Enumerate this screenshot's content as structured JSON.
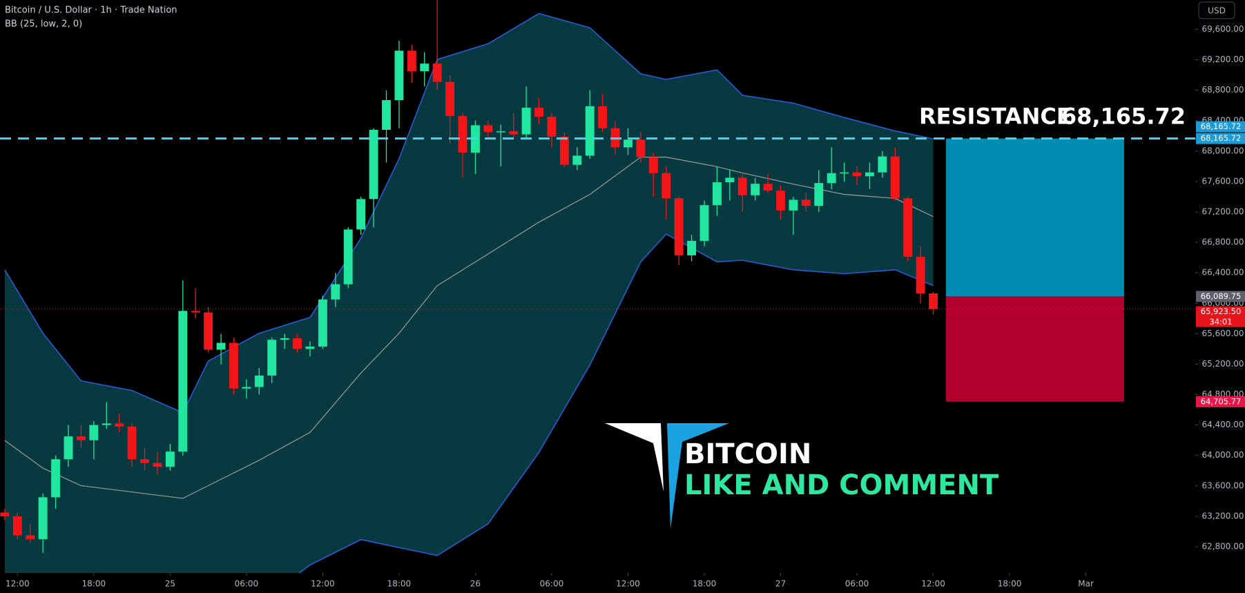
{
  "header": {
    "symbol": "Bitcoin / U.S. Dollar · 1h · Trade Nation",
    "indicator": "BB (25, low, 2, 0)",
    "currency": "USD"
  },
  "chart_data": {
    "type": "candlestick",
    "x": [
      0,
      1,
      2,
      3,
      4,
      5,
      6,
      7,
      8,
      9,
      10,
      11,
      12,
      13,
      14,
      15,
      16,
      17,
      18,
      19,
      20,
      21,
      22,
      23,
      24,
      25,
      26,
      27,
      28,
      29,
      30,
      31,
      32,
      33,
      34,
      35,
      36,
      37,
      38,
      39,
      40,
      41,
      42,
      43,
      44,
      45,
      46,
      47,
      48,
      49,
      50,
      51,
      52,
      53,
      54,
      55,
      56,
      57,
      58,
      59,
      60,
      61,
      62,
      63,
      64,
      65,
      66,
      67,
      68,
      69,
      70,
      71,
      72,
      73
    ],
    "open": [
      63250,
      63200,
      62950,
      62900,
      63450,
      63950,
      64250,
      64200,
      64400,
      64420,
      64380,
      63950,
      63900,
      63850,
      64050,
      65900,
      65880,
      65390,
      65480,
      64880,
      64900,
      65050,
      65520,
      65540,
      65400,
      65430,
      66050,
      66250,
      66970,
      67370,
      68280,
      68670,
      69320,
      69050,
      69150,
      68910,
      68460,
      67980,
      68340,
      68250,
      68260,
      68220,
      68570,
      68450,
      68190,
      67820,
      67940,
      68590,
      68300,
      68050,
      68150,
      67920,
      67710,
      67380,
      66630,
      66820,
      67290,
      67590,
      67650,
      67420,
      67570,
      67480,
      67220,
      67360,
      67280,
      67580,
      67710,
      67720,
      67670,
      67720,
      67930,
      67380,
      66610,
      66130
    ],
    "high": [
      63300,
      63250,
      63100,
      63500,
      64000,
      64400,
      64400,
      64450,
      64700,
      64550,
      64420,
      64100,
      64050,
      64150,
      66300,
      66200,
      65950,
      65600,
      65550,
      65000,
      65150,
      65550,
      65600,
      65600,
      65500,
      66100,
      66400,
      67000,
      67400,
      68300,
      68800,
      69450,
      69400,
      69300,
      69985,
      69000,
      68500,
      68400,
      68400,
      68350,
      68500,
      68850,
      68700,
      68500,
      68250,
      68050,
      68800,
      68750,
      68400,
      68300,
      68250,
      67980,
      67800,
      67400,
      66900,
      67350,
      67800,
      67750,
      67700,
      67650,
      67700,
      67550,
      67400,
      67450,
      67750,
      68050,
      67850,
      67800,
      67850,
      68000,
      68050,
      67400,
      66750,
      66150
    ],
    "low": [
      63150,
      62900,
      62850,
      62720,
      63300,
      63850,
      64100,
      63950,
      64350,
      64300,
      63850,
      63800,
      63750,
      63800,
      64000,
      65800,
      65350,
      65200,
      64800,
      64750,
      64800,
      64950,
      65400,
      65350,
      65300,
      65400,
      65950,
      66200,
      66900,
      67000,
      67850,
      68300,
      68900,
      68850,
      68800,
      68100,
      67650,
      67700,
      68150,
      67800,
      68150,
      68150,
      68350,
      68050,
      67790,
      67750,
      67900,
      68250,
      67950,
      67950,
      67850,
      67400,
      67100,
      66500,
      66550,
      66750,
      67150,
      67350,
      67200,
      67350,
      67450,
      67100,
      66900,
      67200,
      67200,
      67500,
      67600,
      67550,
      67500,
      67650,
      67350,
      66550,
      66000,
      65850
    ],
    "close": [
      63200,
      62950,
      62900,
      63450,
      63950,
      64250,
      64200,
      64400,
      64420,
      64380,
      63950,
      63900,
      63850,
      64050,
      65900,
      65880,
      65390,
      65480,
      64880,
      64900,
      65050,
      65520,
      65540,
      65400,
      65430,
      66050,
      66250,
      66970,
      67370,
      68280,
      68670,
      69320,
      69050,
      69150,
      68910,
      68460,
      67980,
      68340,
      68250,
      68260,
      68220,
      68570,
      68450,
      68190,
      67820,
      67940,
      68590,
      68300,
      68050,
      68150,
      67920,
      67710,
      67380,
      66630,
      66820,
      67290,
      67590,
      67650,
      67420,
      67570,
      67480,
      67220,
      67360,
      67280,
      67580,
      67710,
      67720,
      67670,
      67720,
      67930,
      67380,
      66610,
      66130,
      65923.5
    ],
    "up_color": "#22e6a0",
    "down_color": "#f2161b",
    "bands": {
      "x": [
        0,
        3,
        6,
        10,
        14,
        16,
        20,
        24,
        28,
        31,
        34,
        38,
        42,
        46,
        50,
        52,
        56,
        58,
        62,
        66,
        70,
        73
      ],
      "upper": [
        66440,
        65605,
        64980,
        64854,
        64562,
        65240,
        65605,
        65814,
        66857,
        67900,
        69204,
        69412,
        69809,
        69621,
        69016,
        68943,
        69068,
        68734,
        68630,
        68442,
        68265,
        68161
      ],
      "middle": [
        64197,
        63832,
        63603,
        63519,
        63436,
        63603,
        63937,
        64302,
        65084,
        65605,
        66231,
        66648,
        67066,
        67431,
        67921,
        67921,
        67796,
        67712,
        67566,
        67431,
        67378,
        67139
      ],
      "lower": [
        null,
        null,
        null,
        null,
        null,
        null,
        62059,
        62560,
        62894,
        62789,
        62685,
        63102,
        64041,
        65188,
        66544,
        66909,
        66544,
        66565,
        66440,
        66388,
        66440,
        66231
      ],
      "line_color": "#2a5bd7",
      "middle_color": "#9a9a9a",
      "fill_color": "#073a40"
    },
    "xlim": [
      -0.375,
      93.6
    ],
    "xticks": [
      {
        "value": 1,
        "label": "12:00"
      },
      {
        "value": 7,
        "label": "18:00"
      },
      {
        "value": 13,
        "label": "25"
      },
      {
        "value": 19,
        "label": "06:00"
      },
      {
        "value": 25,
        "label": "12:00"
      },
      {
        "value": 31,
        "label": "18:00"
      },
      {
        "value": 37,
        "label": "26"
      },
      {
        "value": 43,
        "label": "06:00"
      },
      {
        "value": 49,
        "label": "12:00"
      },
      {
        "value": 55,
        "label": "18:00"
      },
      {
        "value": 61,
        "label": "27"
      },
      {
        "value": 67,
        "label": "06:00"
      },
      {
        "value": 73,
        "label": "12:00"
      },
      {
        "value": 79,
        "label": "18:00"
      },
      {
        "value": 85,
        "label": "Mar"
      }
    ],
    "ylim": [
      62455,
      69986
    ],
    "yticks": [
      {
        "value": 62800,
        "label": "62,800.00"
      },
      {
        "value": 63200,
        "label": "63,200.00"
      },
      {
        "value": 63600,
        "label": "63,600.00"
      },
      {
        "value": 64000,
        "label": "64,000.00"
      },
      {
        "value": 64400,
        "label": "64,400.00"
      },
      {
        "value": 64800,
        "label": "64,800.00"
      },
      {
        "value": 65200,
        "label": "65,200.00"
      },
      {
        "value": 65600,
        "label": "65,600.00"
      },
      {
        "value": 66000,
        "label": "66,000.00"
      },
      {
        "value": 66400,
        "label": "66,400.00"
      },
      {
        "value": 66800,
        "label": "66,800.00"
      },
      {
        "value": 67200,
        "label": "67,200.00"
      },
      {
        "value": 67600,
        "label": "67,600.00"
      },
      {
        "value": 68000,
        "label": "68,000.00"
      },
      {
        "value": 68400,
        "label": "68,400.00"
      },
      {
        "value": 68800,
        "label": "68,800.00"
      },
      {
        "value": 69200,
        "label": "69,200.00"
      },
      {
        "value": 69600,
        "label": "69,600.00"
      }
    ],
    "resistance": {
      "label": "RESISTANCE",
      "value": 68165.72,
      "value_label": "68,165.72",
      "color": "#4dd2f2"
    },
    "position": {
      "x": [
        74,
        88
      ],
      "target": 68165.72,
      "target_label": "68,165.72",
      "entry": 66089.75,
      "entry_label": "66,089.75",
      "stop": 64705.77,
      "stop_label": "64,705.77",
      "profit_color": "#008bb3",
      "loss_color": "#b2002f"
    },
    "last_price": 65923.5,
    "last_price_label": "65,923.50",
    "countdown": "34:01"
  },
  "watermark": {
    "title": "BITCOIN",
    "subtitle": "LIKE AND COMMENT"
  }
}
